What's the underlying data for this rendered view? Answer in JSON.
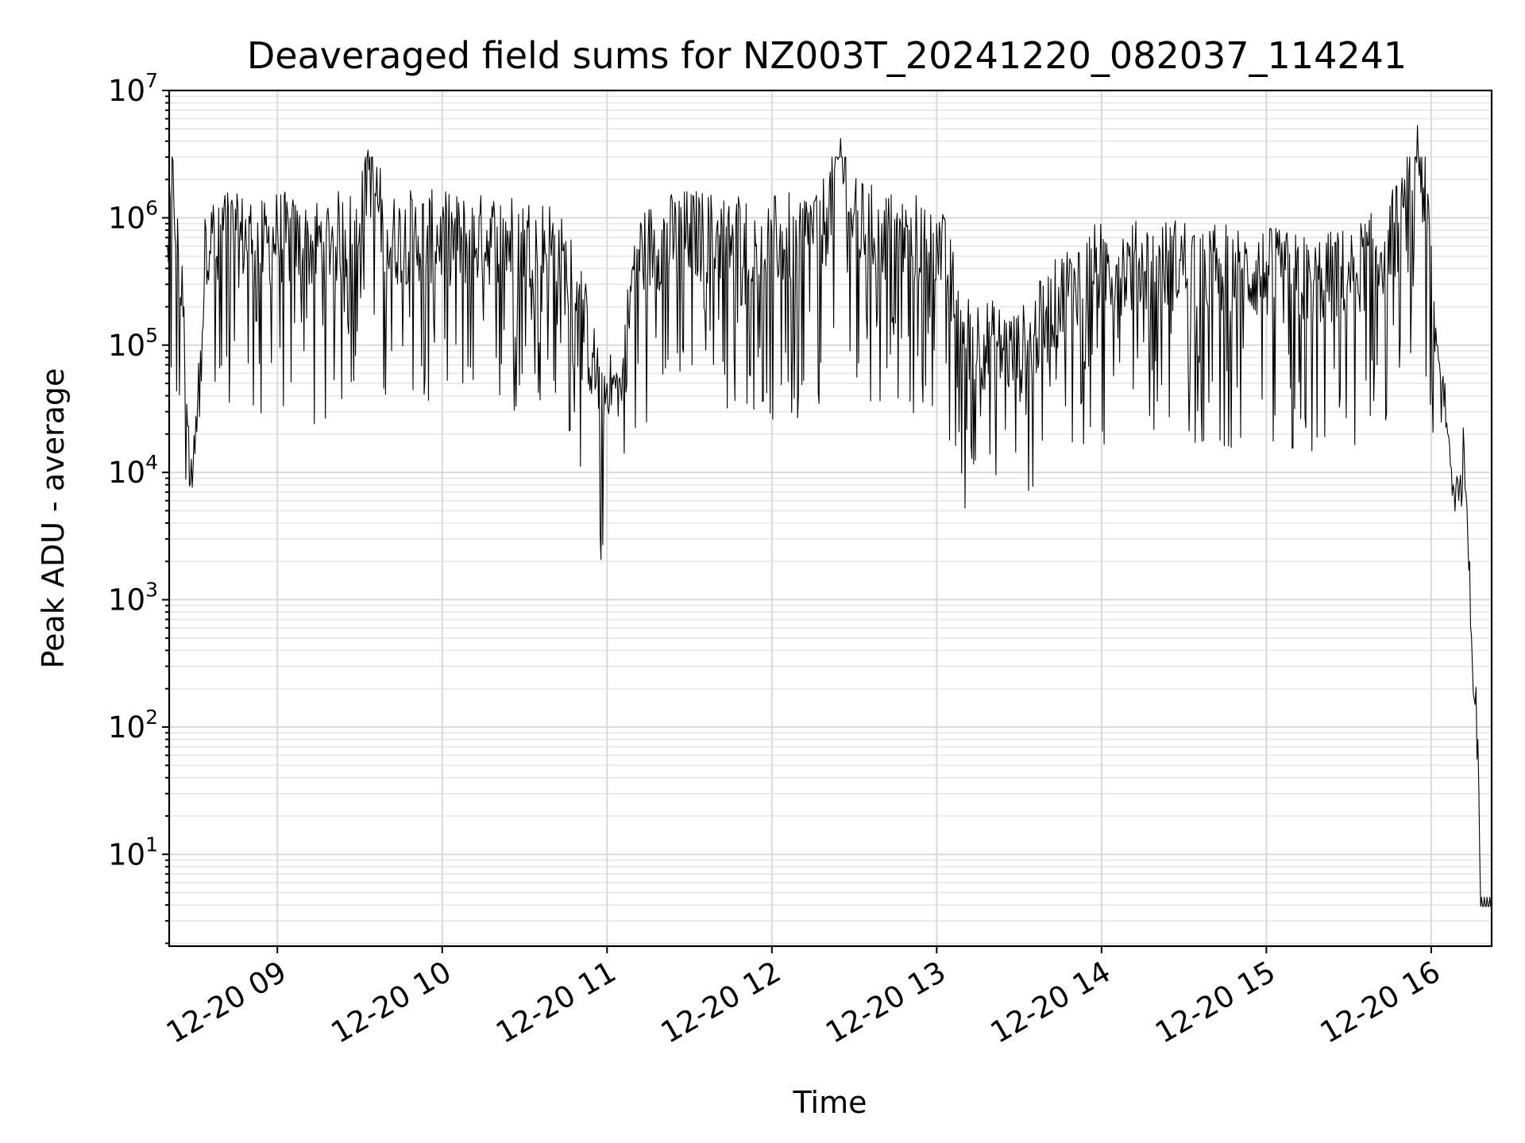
{
  "chart_data": {
    "type": "line",
    "title": "Deaveraged field sums for NZ003T_20241220_082037_114241",
    "xlabel": "Time",
    "ylabel": "Peak ADU - average",
    "y_scale": "log",
    "ylim": [
      1.9,
      10000000
    ],
    "xlim": [
      "2024-12-20 08:20:37",
      "2024-12-20 16:22:00"
    ],
    "grid": true,
    "x_ticks": [
      "12-20 09",
      "12-20 10",
      "12-20 11",
      "12-20 12",
      "12-20 13",
      "12-20 14",
      "12-20 15",
      "12-20 16"
    ],
    "y_ticks": [
      {
        "base": "10",
        "exp": "1"
      },
      {
        "base": "10",
        "exp": "2"
      },
      {
        "base": "10",
        "exp": "3"
      },
      {
        "base": "10",
        "exp": "4"
      },
      {
        "base": "10",
        "exp": "5"
      },
      {
        "base": "10",
        "exp": "6"
      },
      {
        "base": "10",
        "exp": "7"
      }
    ],
    "series": [
      {
        "color": "#000000",
        "x": [
          "08:20",
          "08:22",
          "08:24",
          "08:26",
          "08:28",
          "08:30",
          "08:32",
          "08:34",
          "08:36",
          "08:38",
          "08:40",
          "08:45",
          "08:50",
          "08:55",
          "09:00",
          "09:10",
          "09:20",
          "09:30",
          "09:33",
          "09:40",
          "09:50",
          "10:00",
          "10:10",
          "10:20",
          "10:30",
          "10:40",
          "10:50",
          "10:55",
          "11:00",
          "11:05",
          "11:10",
          "11:20",
          "11:30",
          "11:40",
          "11:50",
          "12:00",
          "12:10",
          "12:20",
          "12:25",
          "12:30",
          "12:40",
          "12:50",
          "13:00",
          "13:10",
          "13:20",
          "13:30",
          "13:40",
          "13:50",
          "14:00",
          "14:10",
          "14:20",
          "14:30",
          "14:40",
          "14:50",
          "15:00",
          "15:10",
          "15:20",
          "15:30",
          "15:40",
          "15:50",
          "15:55",
          "16:00",
          "16:02",
          "16:04",
          "16:06",
          "16:08",
          "16:10",
          "16:12",
          "16:14",
          "16:15",
          "16:16",
          "16:17",
          "16:18",
          "16:19",
          "16:20",
          "16:21",
          "16:22"
        ],
        "values": [
          600000,
          2800000,
          500000,
          200000,
          7800,
          14000,
          90000,
          800000,
          1100000,
          500000,
          1200000,
          800000,
          900000,
          700000,
          900000,
          700000,
          850000,
          900000,
          3400000,
          800000,
          900000,
          850000,
          800000,
          850000,
          800000,
          750000,
          300000,
          80000,
          50000,
          45000,
          600000,
          800000,
          900000,
          850000,
          900000,
          800000,
          850000,
          1200000,
          4200000,
          1100000,
          900000,
          800000,
          900000,
          150000,
          120000,
          100000,
          200000,
          400000,
          500000,
          500000,
          500000,
          550000,
          500000,
          450000,
          450000,
          400000,
          400000,
          450000,
          600000,
          1200000,
          5300000,
          600000,
          100000,
          50000,
          20000,
          8000,
          6000,
          15000,
          2000,
          300,
          150,
          80,
          3.9,
          3.9,
          3.9,
          3.9,
          3.9
        ]
      }
    ]
  }
}
